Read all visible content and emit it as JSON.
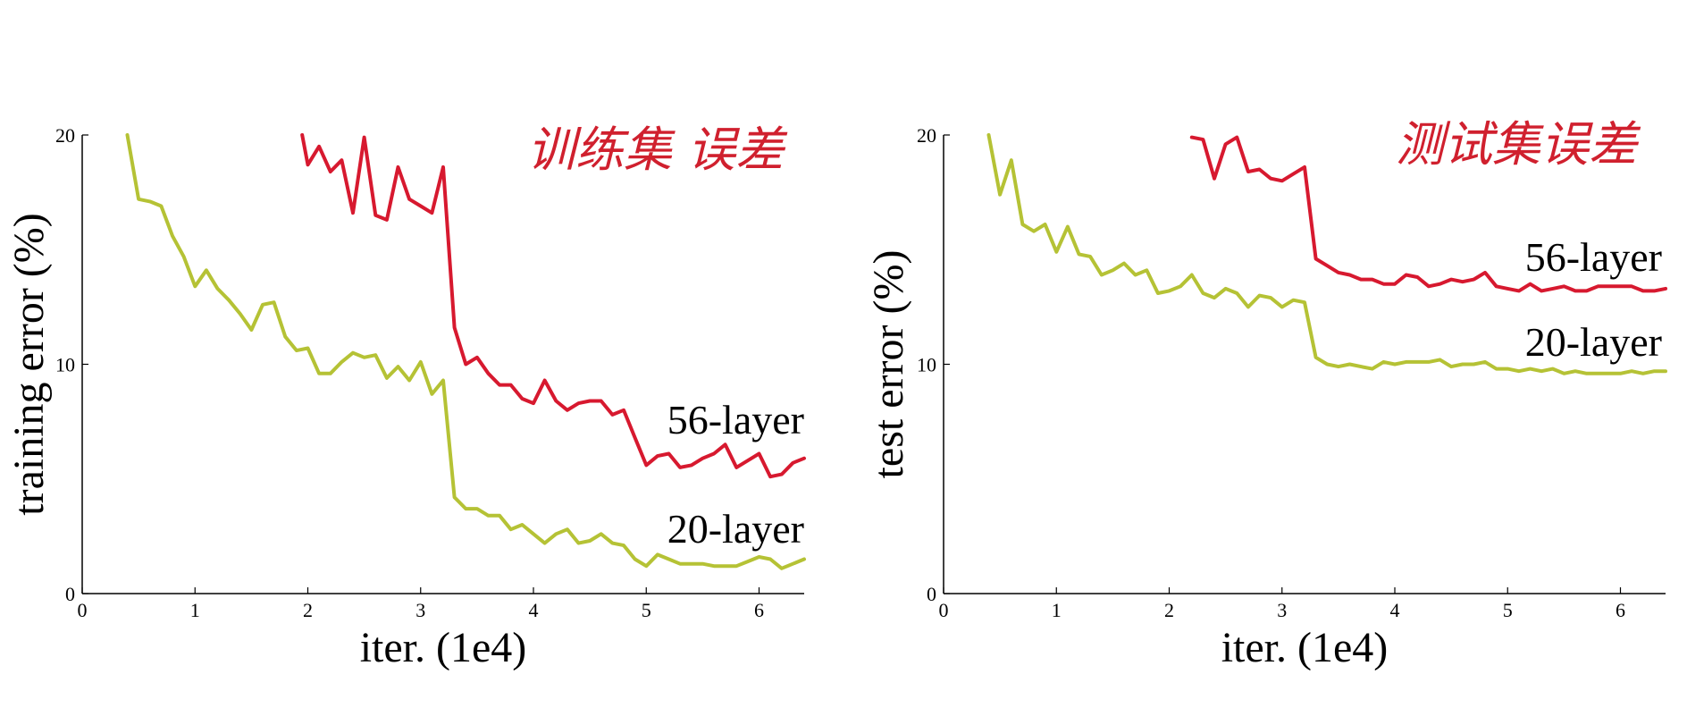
{
  "chart_data": [
    {
      "type": "line",
      "id": "training",
      "xlabel": "iter. (1e4)",
      "ylabel": "training error (%)",
      "xlim": [
        0,
        6.4
      ],
      "ylim": [
        0,
        20
      ],
      "xticks": [
        0,
        1,
        2,
        3,
        4,
        5,
        6
      ],
      "yticks": [
        0,
        10,
        20
      ],
      "grid": false,
      "annotation": {
        "text": "训练集 误差",
        "color": "#d0202e"
      },
      "series": [
        {
          "name": "56-layer",
          "color": "#d7192f",
          "points": [
            [
              1.95,
              20.0
            ],
            [
              2.0,
              18.7
            ],
            [
              2.1,
              19.5
            ],
            [
              2.2,
              18.4
            ],
            [
              2.3,
              18.9
            ],
            [
              2.4,
              16.6
            ],
            [
              2.5,
              19.9
            ],
            [
              2.6,
              16.5
            ],
            [
              2.7,
              16.3
            ],
            [
              2.8,
              18.6
            ],
            [
              2.9,
              17.2
            ],
            [
              3.0,
              16.9
            ],
            [
              3.1,
              16.6
            ],
            [
              3.2,
              18.6
            ],
            [
              3.3,
              11.6
            ],
            [
              3.4,
              10.0
            ],
            [
              3.5,
              10.3
            ],
            [
              3.6,
              9.6
            ],
            [
              3.7,
              9.1
            ],
            [
              3.8,
              9.1
            ],
            [
              3.9,
              8.5
            ],
            [
              4.0,
              8.3
            ],
            [
              4.1,
              9.3
            ],
            [
              4.2,
              8.4
            ],
            [
              4.3,
              8.0
            ],
            [
              4.4,
              8.3
            ],
            [
              4.5,
              8.4
            ],
            [
              4.6,
              8.4
            ],
            [
              4.7,
              7.8
            ],
            [
              4.8,
              8.0
            ],
            [
              4.9,
              6.8
            ],
            [
              5.0,
              5.6
            ],
            [
              5.1,
              6.0
            ],
            [
              5.2,
              6.1
            ],
            [
              5.3,
              5.5
            ],
            [
              5.4,
              5.6
            ],
            [
              5.5,
              5.9
            ],
            [
              5.6,
              6.1
            ],
            [
              5.7,
              6.5
            ],
            [
              5.8,
              5.5
            ],
            [
              5.9,
              5.8
            ],
            [
              6.0,
              6.1
            ],
            [
              6.1,
              5.1
            ],
            [
              6.2,
              5.2
            ],
            [
              6.3,
              5.7
            ],
            [
              6.4,
              5.9
            ]
          ]
        },
        {
          "name": "20-layer",
          "color": "#b5c235",
          "points": [
            [
              0.4,
              20.0
            ],
            [
              0.5,
              17.2
            ],
            [
              0.6,
              17.1
            ],
            [
              0.7,
              16.9
            ],
            [
              0.8,
              15.6
            ],
            [
              0.9,
              14.7
            ],
            [
              1.0,
              13.4
            ],
            [
              1.1,
              14.1
            ],
            [
              1.2,
              13.3
            ],
            [
              1.3,
              12.8
            ],
            [
              1.4,
              12.2
            ],
            [
              1.5,
              11.5
            ],
            [
              1.6,
              12.6
            ],
            [
              1.7,
              12.7
            ],
            [
              1.8,
              11.2
            ],
            [
              1.9,
              10.6
            ],
            [
              2.0,
              10.7
            ],
            [
              2.1,
              9.6
            ],
            [
              2.2,
              9.6
            ],
            [
              2.3,
              10.1
            ],
            [
              2.4,
              10.5
            ],
            [
              2.5,
              10.3
            ],
            [
              2.6,
              10.4
            ],
            [
              2.7,
              9.4
            ],
            [
              2.8,
              9.9
            ],
            [
              2.9,
              9.3
            ],
            [
              3.0,
              10.1
            ],
            [
              3.1,
              8.7
            ],
            [
              3.2,
              9.3
            ],
            [
              3.3,
              4.2
            ],
            [
              3.4,
              3.7
            ],
            [
              3.5,
              3.7
            ],
            [
              3.6,
              3.4
            ],
            [
              3.7,
              3.4
            ],
            [
              3.8,
              2.8
            ],
            [
              3.9,
              3.0
            ],
            [
              4.0,
              2.6
            ],
            [
              4.1,
              2.2
            ],
            [
              4.2,
              2.6
            ],
            [
              4.3,
              2.8
            ],
            [
              4.4,
              2.2
            ],
            [
              4.5,
              2.3
            ],
            [
              4.6,
              2.6
            ],
            [
              4.7,
              2.2
            ],
            [
              4.8,
              2.1
            ],
            [
              4.9,
              1.5
            ],
            [
              5.0,
              1.2
            ],
            [
              5.1,
              1.7
            ],
            [
              5.2,
              1.5
            ],
            [
              5.3,
              1.3
            ],
            [
              5.4,
              1.3
            ],
            [
              5.5,
              1.3
            ],
            [
              5.6,
              1.2
            ],
            [
              5.7,
              1.2
            ],
            [
              5.8,
              1.2
            ],
            [
              5.9,
              1.4
            ],
            [
              6.0,
              1.6
            ],
            [
              6.1,
              1.5
            ],
            [
              6.2,
              1.1
            ],
            [
              6.3,
              1.3
            ],
            [
              6.4,
              1.5
            ]
          ]
        }
      ]
    },
    {
      "type": "line",
      "id": "test",
      "xlabel": "iter. (1e4)",
      "ylabel": "test error (%)",
      "xlim": [
        0,
        6.4
      ],
      "ylim": [
        0,
        20
      ],
      "xticks": [
        0,
        1,
        2,
        3,
        4,
        5,
        6
      ],
      "yticks": [
        0,
        10,
        20
      ],
      "grid": false,
      "annotation": {
        "text": "测试集误差",
        "color": "#d0202e"
      },
      "series": [
        {
          "name": "56-layer",
          "color": "#d7192f",
          "points": [
            [
              2.2,
              19.9
            ],
            [
              2.3,
              19.8
            ],
            [
              2.4,
              18.1
            ],
            [
              2.5,
              19.6
            ],
            [
              2.6,
              19.9
            ],
            [
              2.7,
              18.4
            ],
            [
              2.8,
              18.5
            ],
            [
              2.9,
              18.1
            ],
            [
              3.0,
              18.0
            ],
            [
              3.1,
              18.3
            ],
            [
              3.2,
              18.6
            ],
            [
              3.3,
              14.6
            ],
            [
              3.4,
              14.3
            ],
            [
              3.5,
              14.0
            ],
            [
              3.6,
              13.9
            ],
            [
              3.7,
              13.7
            ],
            [
              3.8,
              13.7
            ],
            [
              3.9,
              13.5
            ],
            [
              4.0,
              13.5
            ],
            [
              4.1,
              13.9
            ],
            [
              4.2,
              13.8
            ],
            [
              4.3,
              13.4
            ],
            [
              4.4,
              13.5
            ],
            [
              4.5,
              13.7
            ],
            [
              4.6,
              13.6
            ],
            [
              4.7,
              13.7
            ],
            [
              4.8,
              14.0
            ],
            [
              4.9,
              13.4
            ],
            [
              5.0,
              13.3
            ],
            [
              5.1,
              13.2
            ],
            [
              5.2,
              13.5
            ],
            [
              5.3,
              13.2
            ],
            [
              5.4,
              13.3
            ],
            [
              5.5,
              13.4
            ],
            [
              5.6,
              13.2
            ],
            [
              5.7,
              13.2
            ],
            [
              5.8,
              13.4
            ],
            [
              5.9,
              13.4
            ],
            [
              6.0,
              13.4
            ],
            [
              6.1,
              13.4
            ],
            [
              6.2,
              13.2
            ],
            [
              6.3,
              13.2
            ],
            [
              6.4,
              13.3
            ]
          ]
        },
        {
          "name": "20-layer",
          "color": "#b5c235",
          "points": [
            [
              0.4,
              20.0
            ],
            [
              0.5,
              17.4
            ],
            [
              0.6,
              18.9
            ],
            [
              0.7,
              16.1
            ],
            [
              0.8,
              15.8
            ],
            [
              0.9,
              16.1
            ],
            [
              1.0,
              14.9
            ],
            [
              1.1,
              16.0
            ],
            [
              1.2,
              14.8
            ],
            [
              1.3,
              14.7
            ],
            [
              1.4,
              13.9
            ],
            [
              1.5,
              14.1
            ],
            [
              1.6,
              14.4
            ],
            [
              1.7,
              13.9
            ],
            [
              1.8,
              14.1
            ],
            [
              1.9,
              13.1
            ],
            [
              2.0,
              13.2
            ],
            [
              2.1,
              13.4
            ],
            [
              2.2,
              13.9
            ],
            [
              2.3,
              13.1
            ],
            [
              2.4,
              12.9
            ],
            [
              2.5,
              13.3
            ],
            [
              2.6,
              13.1
            ],
            [
              2.7,
              12.5
            ],
            [
              2.8,
              13.0
            ],
            [
              2.9,
              12.9
            ],
            [
              3.0,
              12.5
            ],
            [
              3.1,
              12.8
            ],
            [
              3.2,
              12.7
            ],
            [
              3.3,
              10.3
            ],
            [
              3.4,
              10.0
            ],
            [
              3.5,
              9.9
            ],
            [
              3.6,
              10.0
            ],
            [
              3.7,
              9.9
            ],
            [
              3.8,
              9.8
            ],
            [
              3.9,
              10.1
            ],
            [
              4.0,
              10.0
            ],
            [
              4.1,
              10.1
            ],
            [
              4.2,
              10.1
            ],
            [
              4.3,
              10.1
            ],
            [
              4.4,
              10.2
            ],
            [
              4.5,
              9.9
            ],
            [
              4.6,
              10.0
            ],
            [
              4.7,
              10.0
            ],
            [
              4.8,
              10.1
            ],
            [
              4.9,
              9.8
            ],
            [
              5.0,
              9.8
            ],
            [
              5.1,
              9.7
            ],
            [
              5.2,
              9.8
            ],
            [
              5.3,
              9.7
            ],
            [
              5.4,
              9.8
            ],
            [
              5.5,
              9.6
            ],
            [
              5.6,
              9.7
            ],
            [
              5.7,
              9.6
            ],
            [
              5.8,
              9.6
            ],
            [
              5.9,
              9.6
            ],
            [
              6.0,
              9.6
            ],
            [
              6.1,
              9.7
            ],
            [
              6.2,
              9.6
            ],
            [
              6.3,
              9.7
            ],
            [
              6.4,
              9.7
            ]
          ]
        }
      ]
    }
  ]
}
